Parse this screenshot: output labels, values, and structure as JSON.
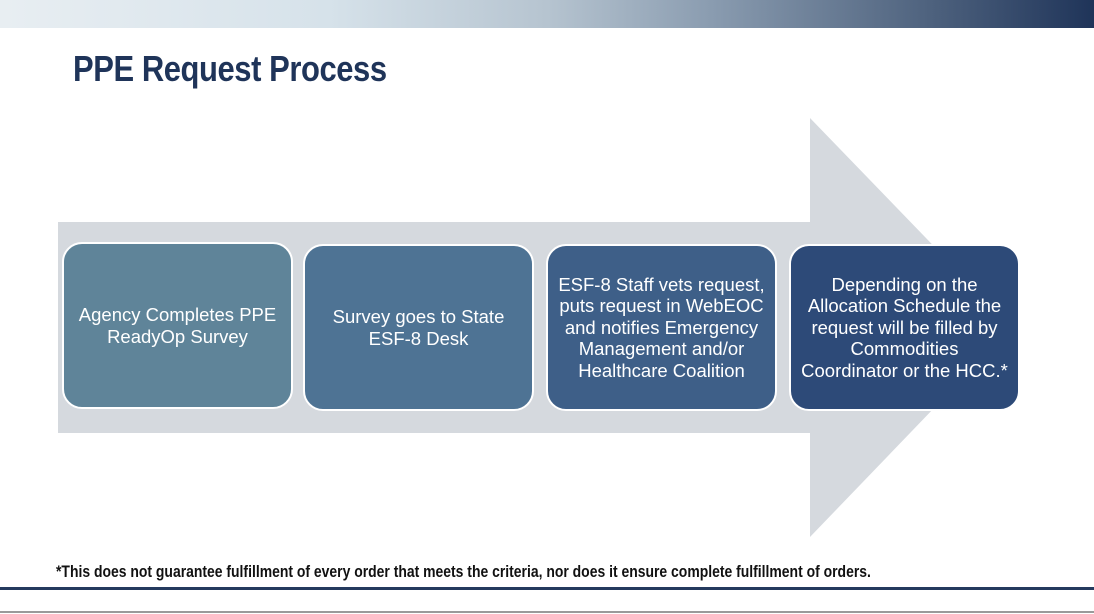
{
  "slide": {
    "title": "PPE Request Process",
    "steps": [
      {
        "text": "Agency Completes PPE ReadyOp Survey",
        "color": "#5f8499"
      },
      {
        "text": "Survey goes to State ESF-8 Desk",
        "color": "#4e7394"
      },
      {
        "text": "ESF-8 Staff vets request, puts request in WebEOC and notifies Emergency Management and/or Healthcare Coalition",
        "color": "#3e5f88"
      },
      {
        "text": "Depending on the Allocation Schedule the request will be filled by Commodities Coordinator or the HCC.*",
        "color": "#2d4a78"
      }
    ],
    "footnote": "*This  does not guarantee fulfillment of every order that meets the criteria, nor does it ensure complete fulfillment of orders.",
    "colors": {
      "title": "#1f3459",
      "arrow": "#d5d9de",
      "rule": "#243a5e"
    }
  }
}
